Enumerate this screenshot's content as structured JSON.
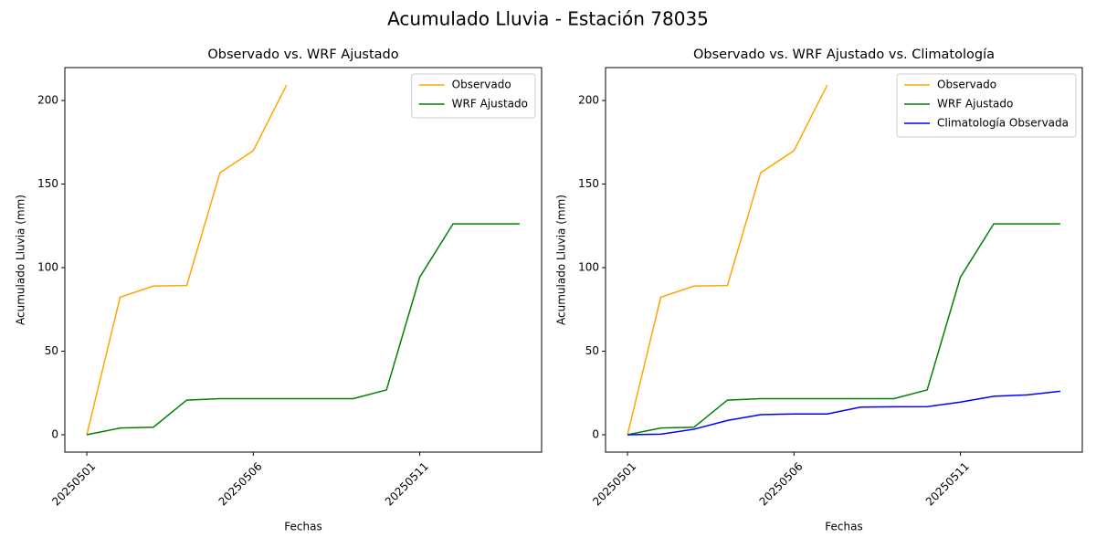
{
  "title": "Acumulado Lluvia - Estación 78035",
  "chart_data": [
    {
      "type": "line",
      "title": "Observado vs. WRF Ajustado",
      "x_label": "Fechas",
      "y_label": "Acumulado Lluvia (mm)",
      "categories": [
        "20250501",
        null,
        null,
        null,
        null,
        "20250506",
        null,
        null,
        null,
        null,
        "20250511",
        null,
        null,
        null
      ],
      "series": [
        {
          "name": "Observado",
          "color": "#ffa500",
          "values": [
            0,
            82.3,
            89,
            89.3,
            156.8,
            170,
            209.3,
            null,
            null,
            null,
            null,
            null,
            null,
            null
          ]
        },
        {
          "name": "WRF Ajustado",
          "color": "#008000",
          "values": [
            0,
            4,
            4.5,
            20.7,
            21.6,
            21.6,
            21.6,
            21.6,
            21.6,
            26.8,
            94.3,
            126.2,
            126.2,
            126.2
          ]
        }
      ],
      "ylim": [
        -10.4,
        219.7
      ],
      "yticks": [
        0,
        50,
        100,
        150,
        200
      ],
      "grid": false,
      "legend": "upper right"
    },
    {
      "type": "line",
      "title": "Observado vs. WRF Ajustado vs. Climatología",
      "x_label": "Fechas",
      "y_label": "Acumulado Lluvia (mm)",
      "categories": [
        "20250501",
        null,
        null,
        null,
        null,
        "20250506",
        null,
        null,
        null,
        null,
        "20250511",
        null,
        null,
        null
      ],
      "series": [
        {
          "name": "Observado",
          "color": "#ffa500",
          "values": [
            0,
            82.3,
            89,
            89.3,
            156.8,
            170,
            209.3,
            null,
            null,
            null,
            null,
            null,
            null,
            null
          ]
        },
        {
          "name": "WRF Ajustado",
          "color": "#008000",
          "values": [
            0,
            4,
            4.5,
            20.7,
            21.6,
            21.6,
            21.6,
            21.6,
            21.6,
            26.8,
            94.3,
            126.2,
            126.2,
            126.2
          ]
        },
        {
          "name": "Climatología Observada",
          "color": "#0000ff",
          "values": [
            0,
            0.3,
            3.3,
            8.5,
            12,
            12.4,
            12.4,
            16.5,
            16.7,
            16.8,
            19.5,
            23,
            23.8,
            26
          ]
        }
      ],
      "ylim": [
        -10.4,
        219.7
      ],
      "yticks": [
        0,
        50,
        100,
        150,
        200
      ],
      "grid": false,
      "legend": "upper right"
    }
  ]
}
